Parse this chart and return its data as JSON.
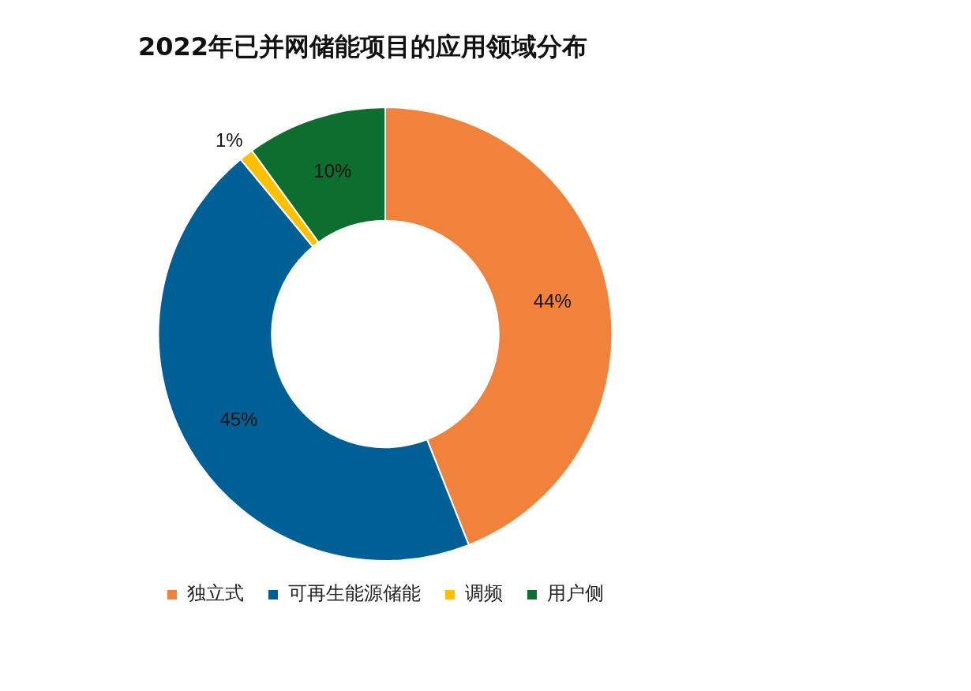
{
  "chart_data": {
    "type": "donut",
    "title": "2022年已并网储能项目的应用领域分布",
    "categories": [
      "独立式",
      "可再生能源储能",
      "调频",
      "用户侧"
    ],
    "values": [
      44,
      45,
      1,
      10
    ],
    "value_labels": [
      "44%",
      "45%",
      "1%",
      "10%"
    ],
    "colors": [
      "#f0823c",
      "#006096",
      "#ffc000",
      "#0e6e2f"
    ],
    "legend": "bottom"
  }
}
